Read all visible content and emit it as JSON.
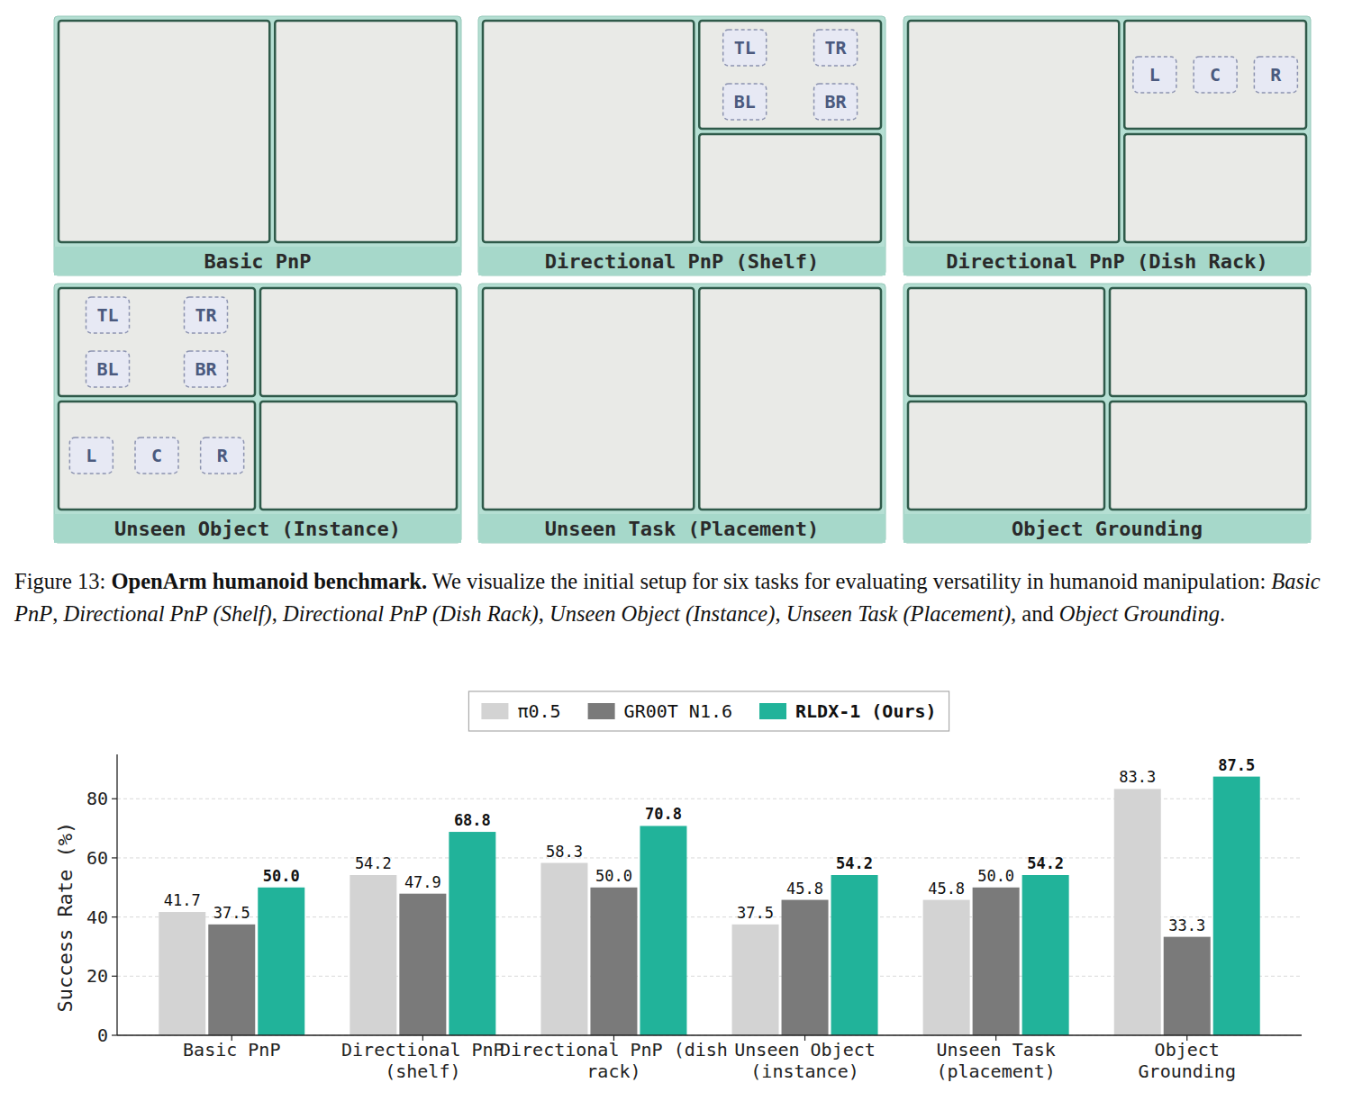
{
  "panels": [
    {
      "title": "Basic PnP",
      "label_groups": []
    },
    {
      "title": "Directional PnP (Shelf)",
      "label_groups": [
        [
          "TL",
          "TR",
          "BL",
          "BR"
        ]
      ]
    },
    {
      "title": "Directional PnP (Dish Rack)",
      "label_groups": [
        [
          "L",
          "C",
          "R"
        ]
      ]
    },
    {
      "title": "Unseen Object (Instance)",
      "label_groups": [
        [
          "TL",
          "TR",
          "BL",
          "BR"
        ],
        [
          "L",
          "C",
          "R"
        ]
      ]
    },
    {
      "title": "Unseen Task (Placement)",
      "label_groups": []
    },
    {
      "title": "Object Grounding",
      "label_groups": []
    }
  ],
  "caption": {
    "segments": [
      {
        "text": "Figure 13: ",
        "style": "normal"
      },
      {
        "text": "OpenArm humanoid benchmark.",
        "style": "bold"
      },
      {
        "text": " We visualize the initial setup for six tasks for evaluating versatility in humanoid manipulation: ",
        "style": "normal"
      },
      {
        "text": "Basic PnP",
        "style": "italic"
      },
      {
        "text": ", ",
        "style": "normal"
      },
      {
        "text": "Directional PnP (Shelf)",
        "style": "italic"
      },
      {
        "text": ", ",
        "style": "normal"
      },
      {
        "text": "Directional PnP (Dish Rack)",
        "style": "italic"
      },
      {
        "text": ", ",
        "style": "normal"
      },
      {
        "text": "Unseen Object (Instance)",
        "style": "italic"
      },
      {
        "text": ", ",
        "style": "normal"
      },
      {
        "text": "Unseen Task (Placement)",
        "style": "italic"
      },
      {
        "text": ", and ",
        "style": "normal"
      },
      {
        "text": "Object Grounding",
        "style": "italic"
      },
      {
        "text": ".",
        "style": "normal"
      }
    ]
  },
  "chart_data": {
    "type": "bar",
    "y_label": "Success Rate (%)",
    "categories": [
      "Basic PnP",
      "Directional PnP (shelf)",
      "Directional PnP (dish rack)",
      "Unseen Object (instance)",
      "Unseen Task (placement)",
      "Object Grounding"
    ],
    "series": [
      {
        "name": "π0.5",
        "color": "#d3d3d3",
        "values": [
          41.7,
          54.2,
          58.3,
          37.5,
          45.8,
          83.3
        ],
        "value_labels": [
          "41.7",
          "54.2",
          "58.3",
          "37.5",
          "45.8",
          "83.3"
        ]
      },
      {
        "name": "GR00T N1.6",
        "color": "#7a7a7a",
        "values": [
          37.5,
          47.9,
          50.0,
          45.8,
          50.0,
          33.3
        ],
        "value_labels": [
          "37.5",
          "47.9",
          "50.0",
          "45.8",
          "50.0",
          "33.3"
        ]
      },
      {
        "name": "RLDX-1 (Ours)",
        "color": "#21b39a",
        "values": [
          50.0,
          68.8,
          70.8,
          54.2,
          54.2,
          87.5
        ],
        "value_labels": [
          "50.0",
          "68.8",
          "70.8",
          "54.2",
          "54.2",
          "87.5"
        ]
      }
    ],
    "ylim": [
      0,
      95
    ],
    "yticks": [
      0,
      20,
      40,
      60,
      80
    ],
    "grid": true,
    "legend": "top",
    "data_labels": true
  }
}
